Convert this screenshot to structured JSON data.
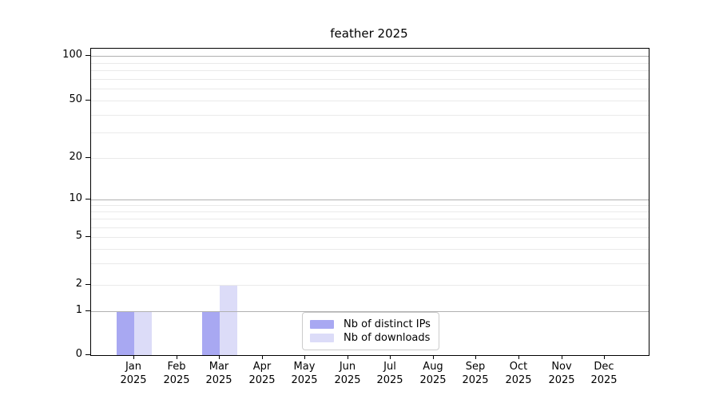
{
  "chart_data": {
    "type": "bar",
    "title": "feather 2025",
    "categories": [
      "Jan",
      "Feb",
      "Mar",
      "Apr",
      "May",
      "Jun",
      "Jul",
      "Aug",
      "Sep",
      "Oct",
      "Nov",
      "Dec"
    ],
    "xtick_year": "2025",
    "series": [
      {
        "name": "Nb of distinct IPs",
        "color": "#a8a8f2",
        "values": [
          1,
          0,
          1,
          0,
          0,
          0,
          0,
          0,
          0,
          0,
          0,
          0
        ]
      },
      {
        "name": "Nb of downloads",
        "color": "#dcdcf8",
        "values": [
          1,
          0,
          2,
          0,
          0,
          0,
          0,
          0,
          0,
          0,
          0,
          0
        ]
      }
    ],
    "yticks": [
      0,
      1,
      2,
      5,
      10,
      20,
      50,
      100
    ],
    "ylim": [
      0,
      112
    ],
    "yscale": "symlog",
    "grid": {
      "major_values": [
        1,
        10,
        100
      ],
      "minor_values": [
        2,
        3,
        4,
        5,
        6,
        7,
        8,
        9,
        20,
        30,
        40,
        50,
        60,
        70,
        80,
        90
      ],
      "major_color": "#b0b0b0",
      "minor_color": "#eaeaea"
    },
    "legend_position": "lower center",
    "spine_color": "#000000",
    "text_color": "#000000"
  }
}
